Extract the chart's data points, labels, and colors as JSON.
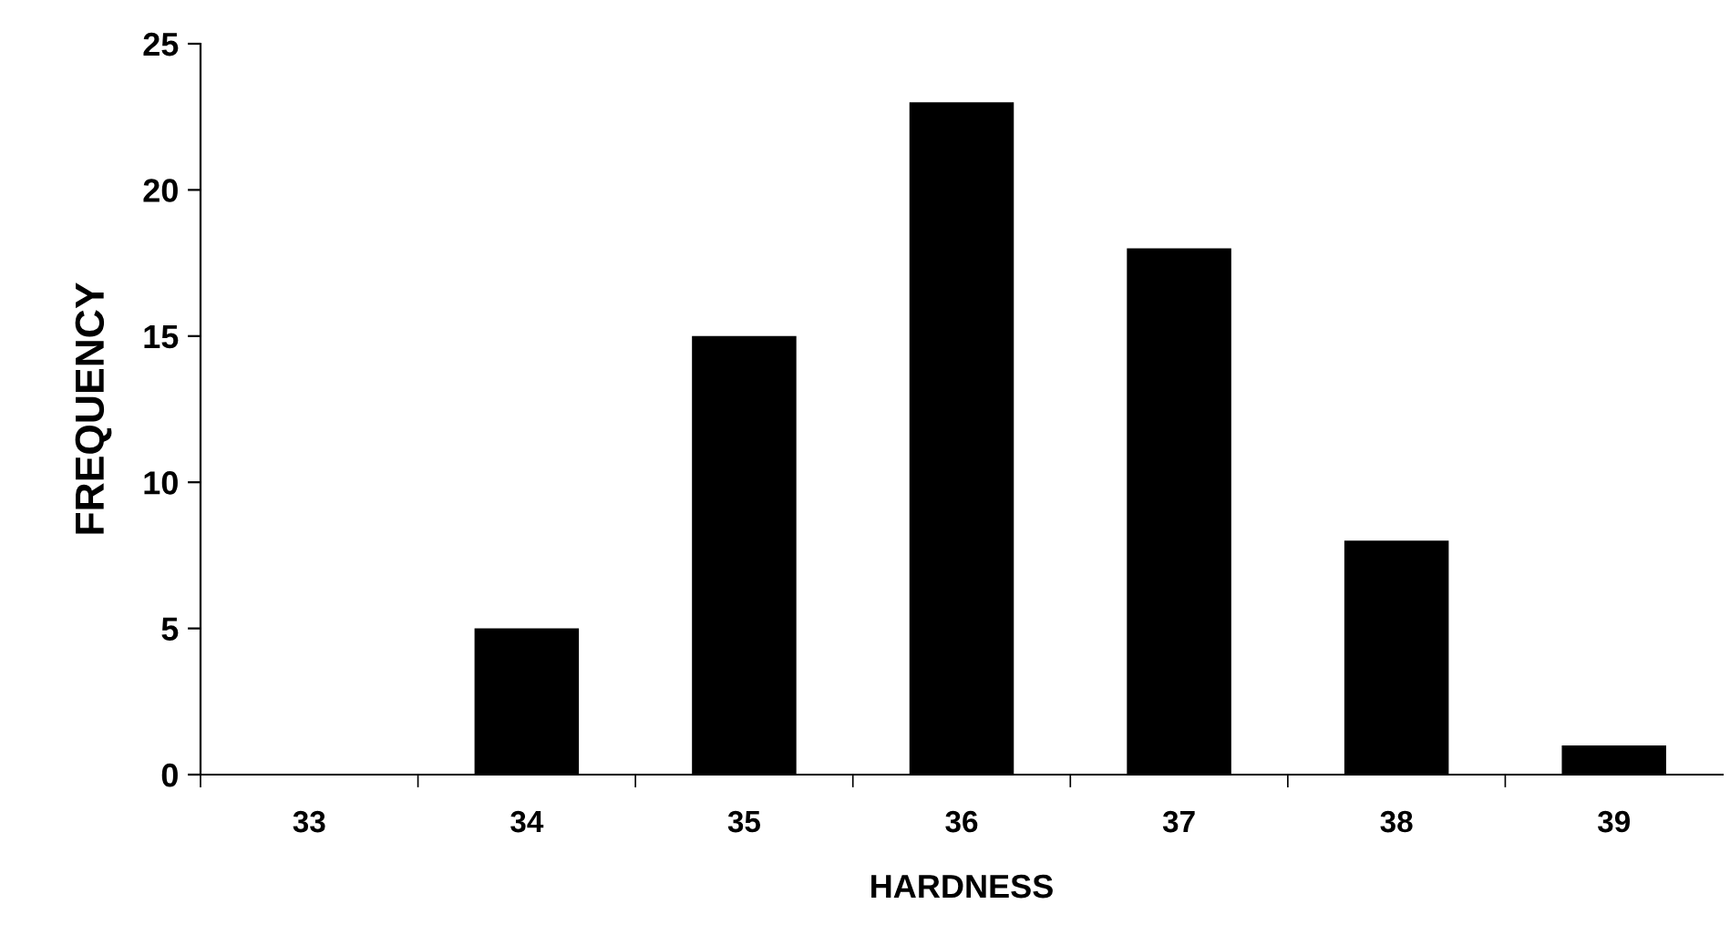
{
  "chart_data": {
    "type": "bar",
    "xlabel": "HARDNESS",
    "ylabel": "FREQUENCY",
    "categories": [
      "33",
      "34",
      "35",
      "36",
      "37",
      "38",
      "39"
    ],
    "values": [
      0,
      5,
      15,
      23,
      18,
      8,
      1
    ],
    "color": "#000000",
    "ylim": [
      0,
      25
    ],
    "yticks": [
      0,
      5,
      10,
      15,
      20,
      25
    ],
    "grid": false,
    "legend": false
  }
}
